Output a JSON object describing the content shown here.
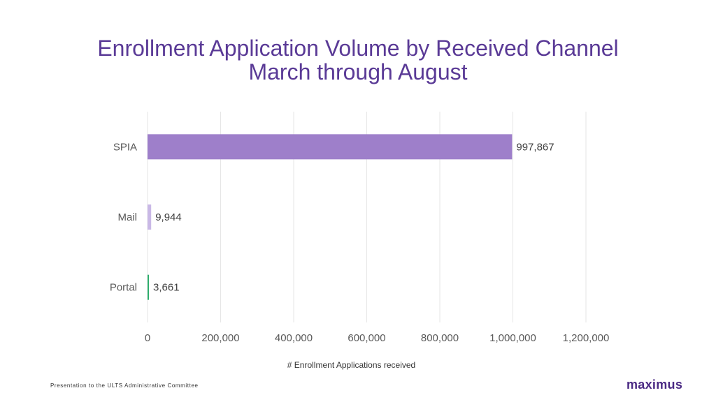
{
  "slide": {
    "title_line1": "Enrollment Application Volume by Received Channel",
    "title_line2": "March through August",
    "footer": "Presentation to the ULTS Administrative Committee",
    "logo": "maximus"
  },
  "colors": {
    "title": "#5a3a96",
    "grid": "#e6e6e6",
    "label": "#595959",
    "logo": "#4b2a84"
  },
  "chart_data": {
    "type": "bar",
    "orientation": "horizontal",
    "categories": [
      "SPIA",
      "Mail",
      "Portal"
    ],
    "values": [
      997867,
      9944,
      3661
    ],
    "value_labels": [
      "997,867",
      "9,944",
      "3,661"
    ],
    "bar_colors": [
      "#9e7fca",
      "#c9b8e6",
      "#2fae6e"
    ],
    "xlabel": "# Enrollment Applications received",
    "xlim": [
      0,
      1200000
    ],
    "xticks": [
      0,
      200000,
      400000,
      600000,
      800000,
      1000000,
      1200000
    ],
    "xtick_labels": [
      "0",
      "200,000",
      "400,000",
      "600,000",
      "800,000",
      "1,000,000",
      "1,200,000"
    ],
    "grid": "vertical",
    "legend": "none"
  }
}
